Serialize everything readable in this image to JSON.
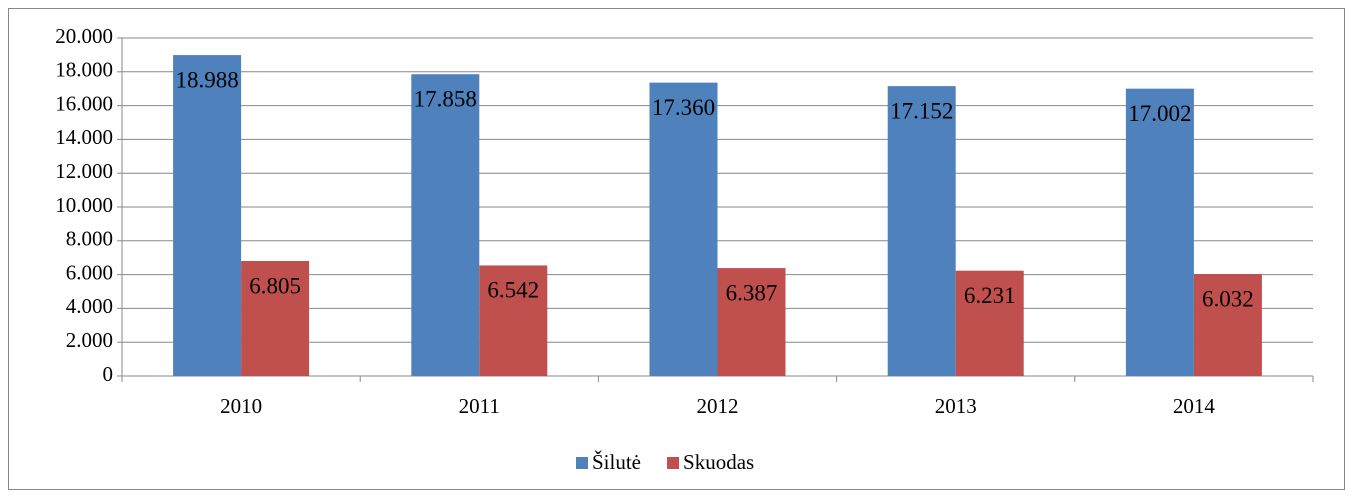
{
  "chart_data": {
    "type": "bar",
    "categories": [
      "2010",
      "2011",
      "2012",
      "2013",
      "2014"
    ],
    "series": [
      {
        "name": "Šilutė",
        "color": "#4f81bd",
        "values": [
          18988,
          17858,
          17360,
          17152,
          17002
        ],
        "value_labels": [
          "18.988",
          "17.858",
          "17.360",
          "17.152",
          "17.002"
        ]
      },
      {
        "name": "Skuodas",
        "color": "#c0504d",
        "values": [
          6805,
          6542,
          6387,
          6231,
          6032
        ],
        "value_labels": [
          "6.805",
          "6.542",
          "6.387",
          "6.231",
          "6.032"
        ]
      }
    ],
    "ylim": [
      0,
      20000
    ],
    "yticks": [
      0,
      {
        "value": 2000,
        "label": "2.000"
      },
      {
        "value": 4000,
        "label": "4.000"
      },
      {
        "value": 6000,
        "label": "6.000"
      },
      {
        "value": 8000,
        "label": "8.000"
      },
      {
        "value": 10000,
        "label": "10.000"
      },
      {
        "value": 12000,
        "label": "12.000"
      },
      {
        "value": 14000,
        "label": "14.000"
      },
      {
        "value": 16000,
        "label": "16.000"
      },
      {
        "value": 18000,
        "label": "18.000"
      },
      {
        "value": 20000,
        "label": "20.000"
      }
    ],
    "grid": true,
    "legend": "bottom"
  }
}
